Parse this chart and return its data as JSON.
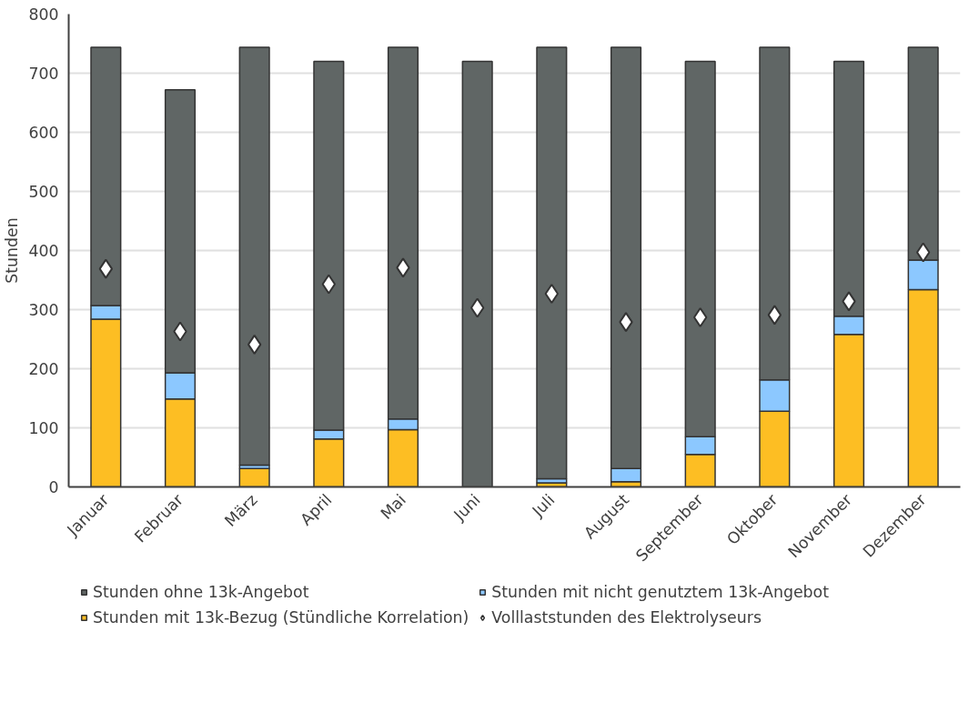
{
  "chart_data": {
    "type": "bar",
    "stacked": true,
    "ylabel": "Stunden",
    "categories": [
      "Januar",
      "Februar",
      "März",
      "April",
      "Mai",
      "Juni",
      "Juli",
      "August",
      "September",
      "Oktober",
      "November",
      "Dezember"
    ],
    "series": [
      {
        "name": "Stunden mit 13k-Bezug (Stündliche Korrelation)",
        "color": "#fdbe23",
        "values": [
          284,
          149,
          31,
          81,
          97,
          0,
          7,
          9,
          55,
          128,
          258,
          334
        ]
      },
      {
        "name": "Stunden mit nicht genutztem 13k-Angebot",
        "color": "#8cc8ff",
        "values": [
          23,
          44,
          6,
          15,
          18,
          0,
          7,
          22,
          30,
          53,
          31,
          50
        ]
      },
      {
        "name": "Stunden ohne 13k-Angebot",
        "color": "#606665",
        "values": [
          437,
          479,
          707,
          624,
          629,
          720,
          730,
          713,
          635,
          563,
          431,
          360
        ]
      },
      {
        "name": "Volllaststunden des Elektrolyseurs",
        "type": "scatter",
        "marker": "diamond",
        "color": "#ffffff",
        "values": [
          369,
          263,
          241,
          343,
          371,
          303,
          327,
          279,
          287,
          291,
          314,
          397
        ]
      }
    ],
    "ylim": [
      0,
      800
    ],
    "yticks": [
      0,
      100,
      200,
      300,
      400,
      500,
      600,
      700,
      800
    ],
    "grid": "y",
    "legend": "bottom"
  }
}
